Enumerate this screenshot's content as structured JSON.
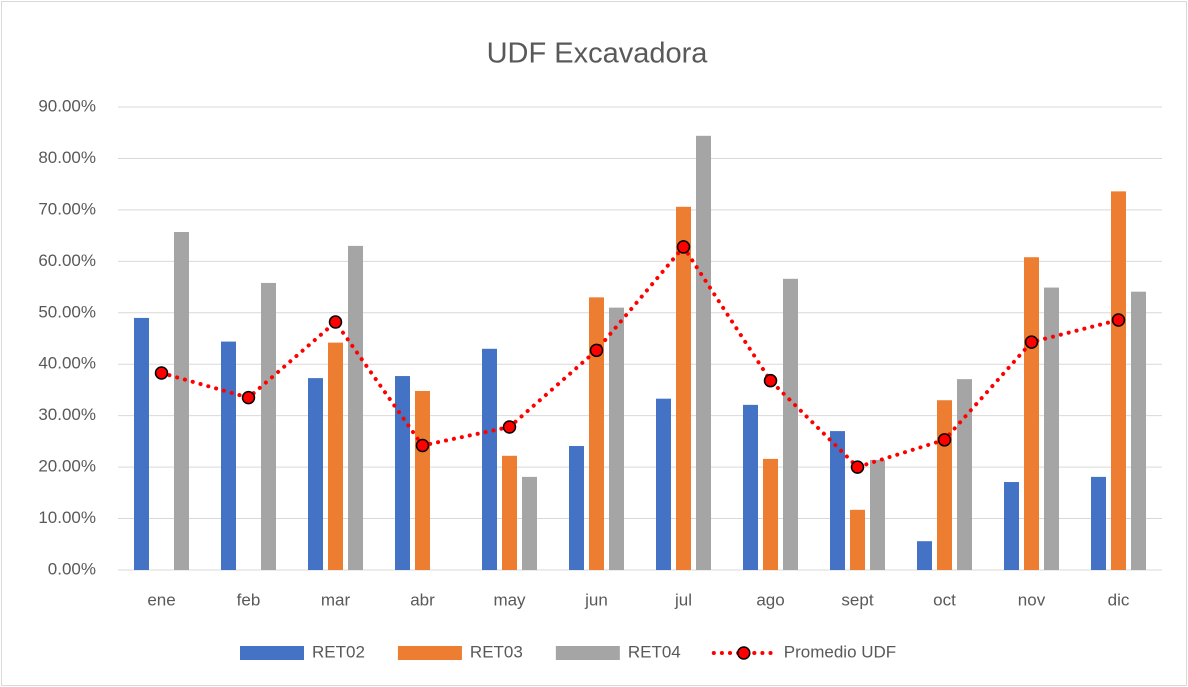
{
  "chart_data": {
    "type": "bar",
    "title": "UDF Excavadora",
    "categories": [
      "ene",
      "feb",
      "mar",
      "abr",
      "may",
      "jun",
      "jul",
      "ago",
      "sept",
      "oct",
      "nov",
      "dic"
    ],
    "series": [
      {
        "name": "RET02",
        "type": "bar",
        "color": "#4472c4",
        "values": [
          49.0,
          44.4,
          37.3,
          37.7,
          43.0,
          24.1,
          33.3,
          32.1,
          27.0,
          5.6,
          17.1,
          18.1
        ]
      },
      {
        "name": "RET03",
        "type": "bar",
        "color": "#ed7d31",
        "values": [
          null,
          null,
          44.2,
          34.8,
          22.2,
          53.0,
          70.6,
          21.6,
          11.7,
          33.0,
          60.8,
          73.6
        ]
      },
      {
        "name": "RET04",
        "type": "bar",
        "color": "#a5a5a5",
        "values": [
          65.7,
          55.8,
          63.0,
          null,
          18.1,
          51.0,
          84.4,
          56.6,
          21.4,
          37.1,
          54.9,
          54.1
        ]
      },
      {
        "name": "Promedio UDF",
        "type": "line",
        "line_style": "dotted",
        "marker": "circle",
        "color": "#ff0000",
        "values": [
          38.3,
          33.5,
          48.2,
          24.2,
          27.8,
          42.7,
          62.8,
          36.8,
          20.0,
          25.3,
          44.3,
          48.6
        ]
      }
    ],
    "ylim": [
      0,
      90
    ],
    "yticks": [
      {
        "value": 0,
        "label": "0.00%"
      },
      {
        "value": 10,
        "label": "10.00%"
      },
      {
        "value": 20,
        "label": "20.00%"
      },
      {
        "value": 30,
        "label": "30.00%"
      },
      {
        "value": 40,
        "label": "40.00%"
      },
      {
        "value": 50,
        "label": "50.00%"
      },
      {
        "value": 60,
        "label": "60.00%"
      },
      {
        "value": 70,
        "label": "70.00%"
      },
      {
        "value": 80,
        "label": "80.00%"
      },
      {
        "value": 90,
        "label": "90.00%"
      }
    ],
    "grid": true,
    "legend": "bottom"
  }
}
